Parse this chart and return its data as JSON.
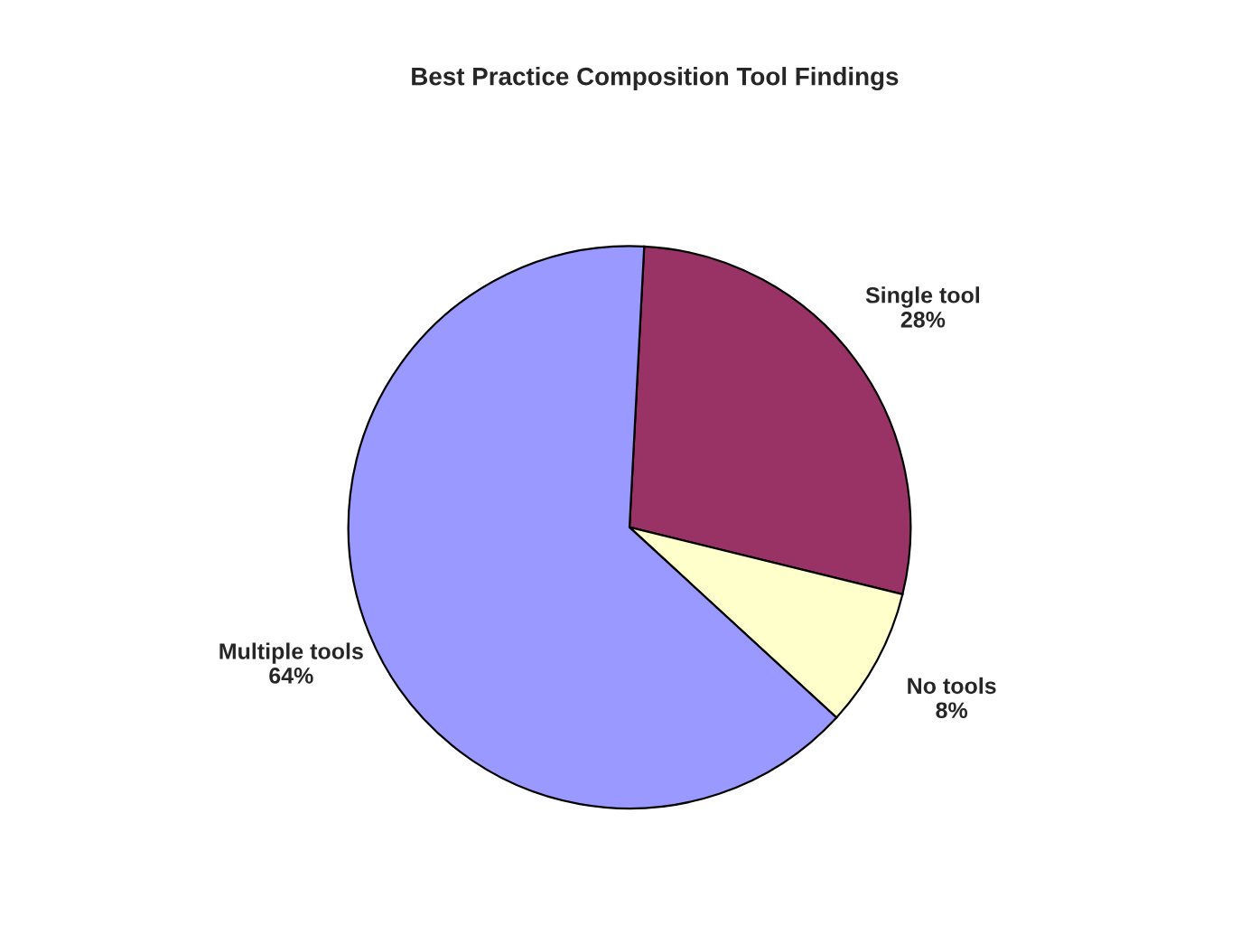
{
  "chart_data": {
    "type": "pie",
    "title": "Best Practice Composition Tool Findings",
    "categories": [
      "Single tool",
      "No tools",
      "Multiple tools"
    ],
    "values": [
      28,
      8,
      64
    ],
    "value_labels": [
      "28%",
      "8%",
      "64%"
    ],
    "colors": [
      "#993366",
      "#ffffcc",
      "#9999ff"
    ],
    "legend": false
  }
}
